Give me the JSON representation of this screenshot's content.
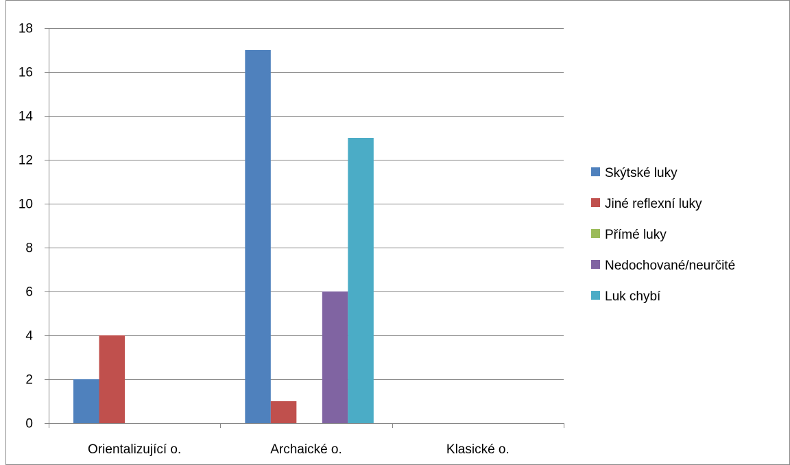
{
  "chart_data": {
    "type": "bar",
    "categories": [
      "Orientalizující o.",
      "Archaické o.",
      "Klasické o."
    ],
    "series": [
      {
        "name": "Skýtské luky",
        "color": "#4F81BD",
        "values": [
          2,
          17,
          0
        ]
      },
      {
        "name": "Jiné reflexní luky",
        "color": "#C0504D",
        "values": [
          4,
          1,
          0
        ]
      },
      {
        "name": "Přímé luky",
        "color": "#9BBB59",
        "values": [
          0,
          0,
          0
        ]
      },
      {
        "name": "Nedochované/neurčité",
        "color": "#8064A2",
        "values": [
          0,
          6,
          0
        ]
      },
      {
        "name": "Luk chybí",
        "color": "#4BACC6",
        "values": [
          0,
          13,
          0
        ]
      }
    ],
    "ylim": [
      0,
      18
    ],
    "yticks": [
      0,
      2,
      4,
      6,
      8,
      10,
      12,
      14,
      16,
      18
    ],
    "grid": true,
    "legend_position": "right"
  }
}
